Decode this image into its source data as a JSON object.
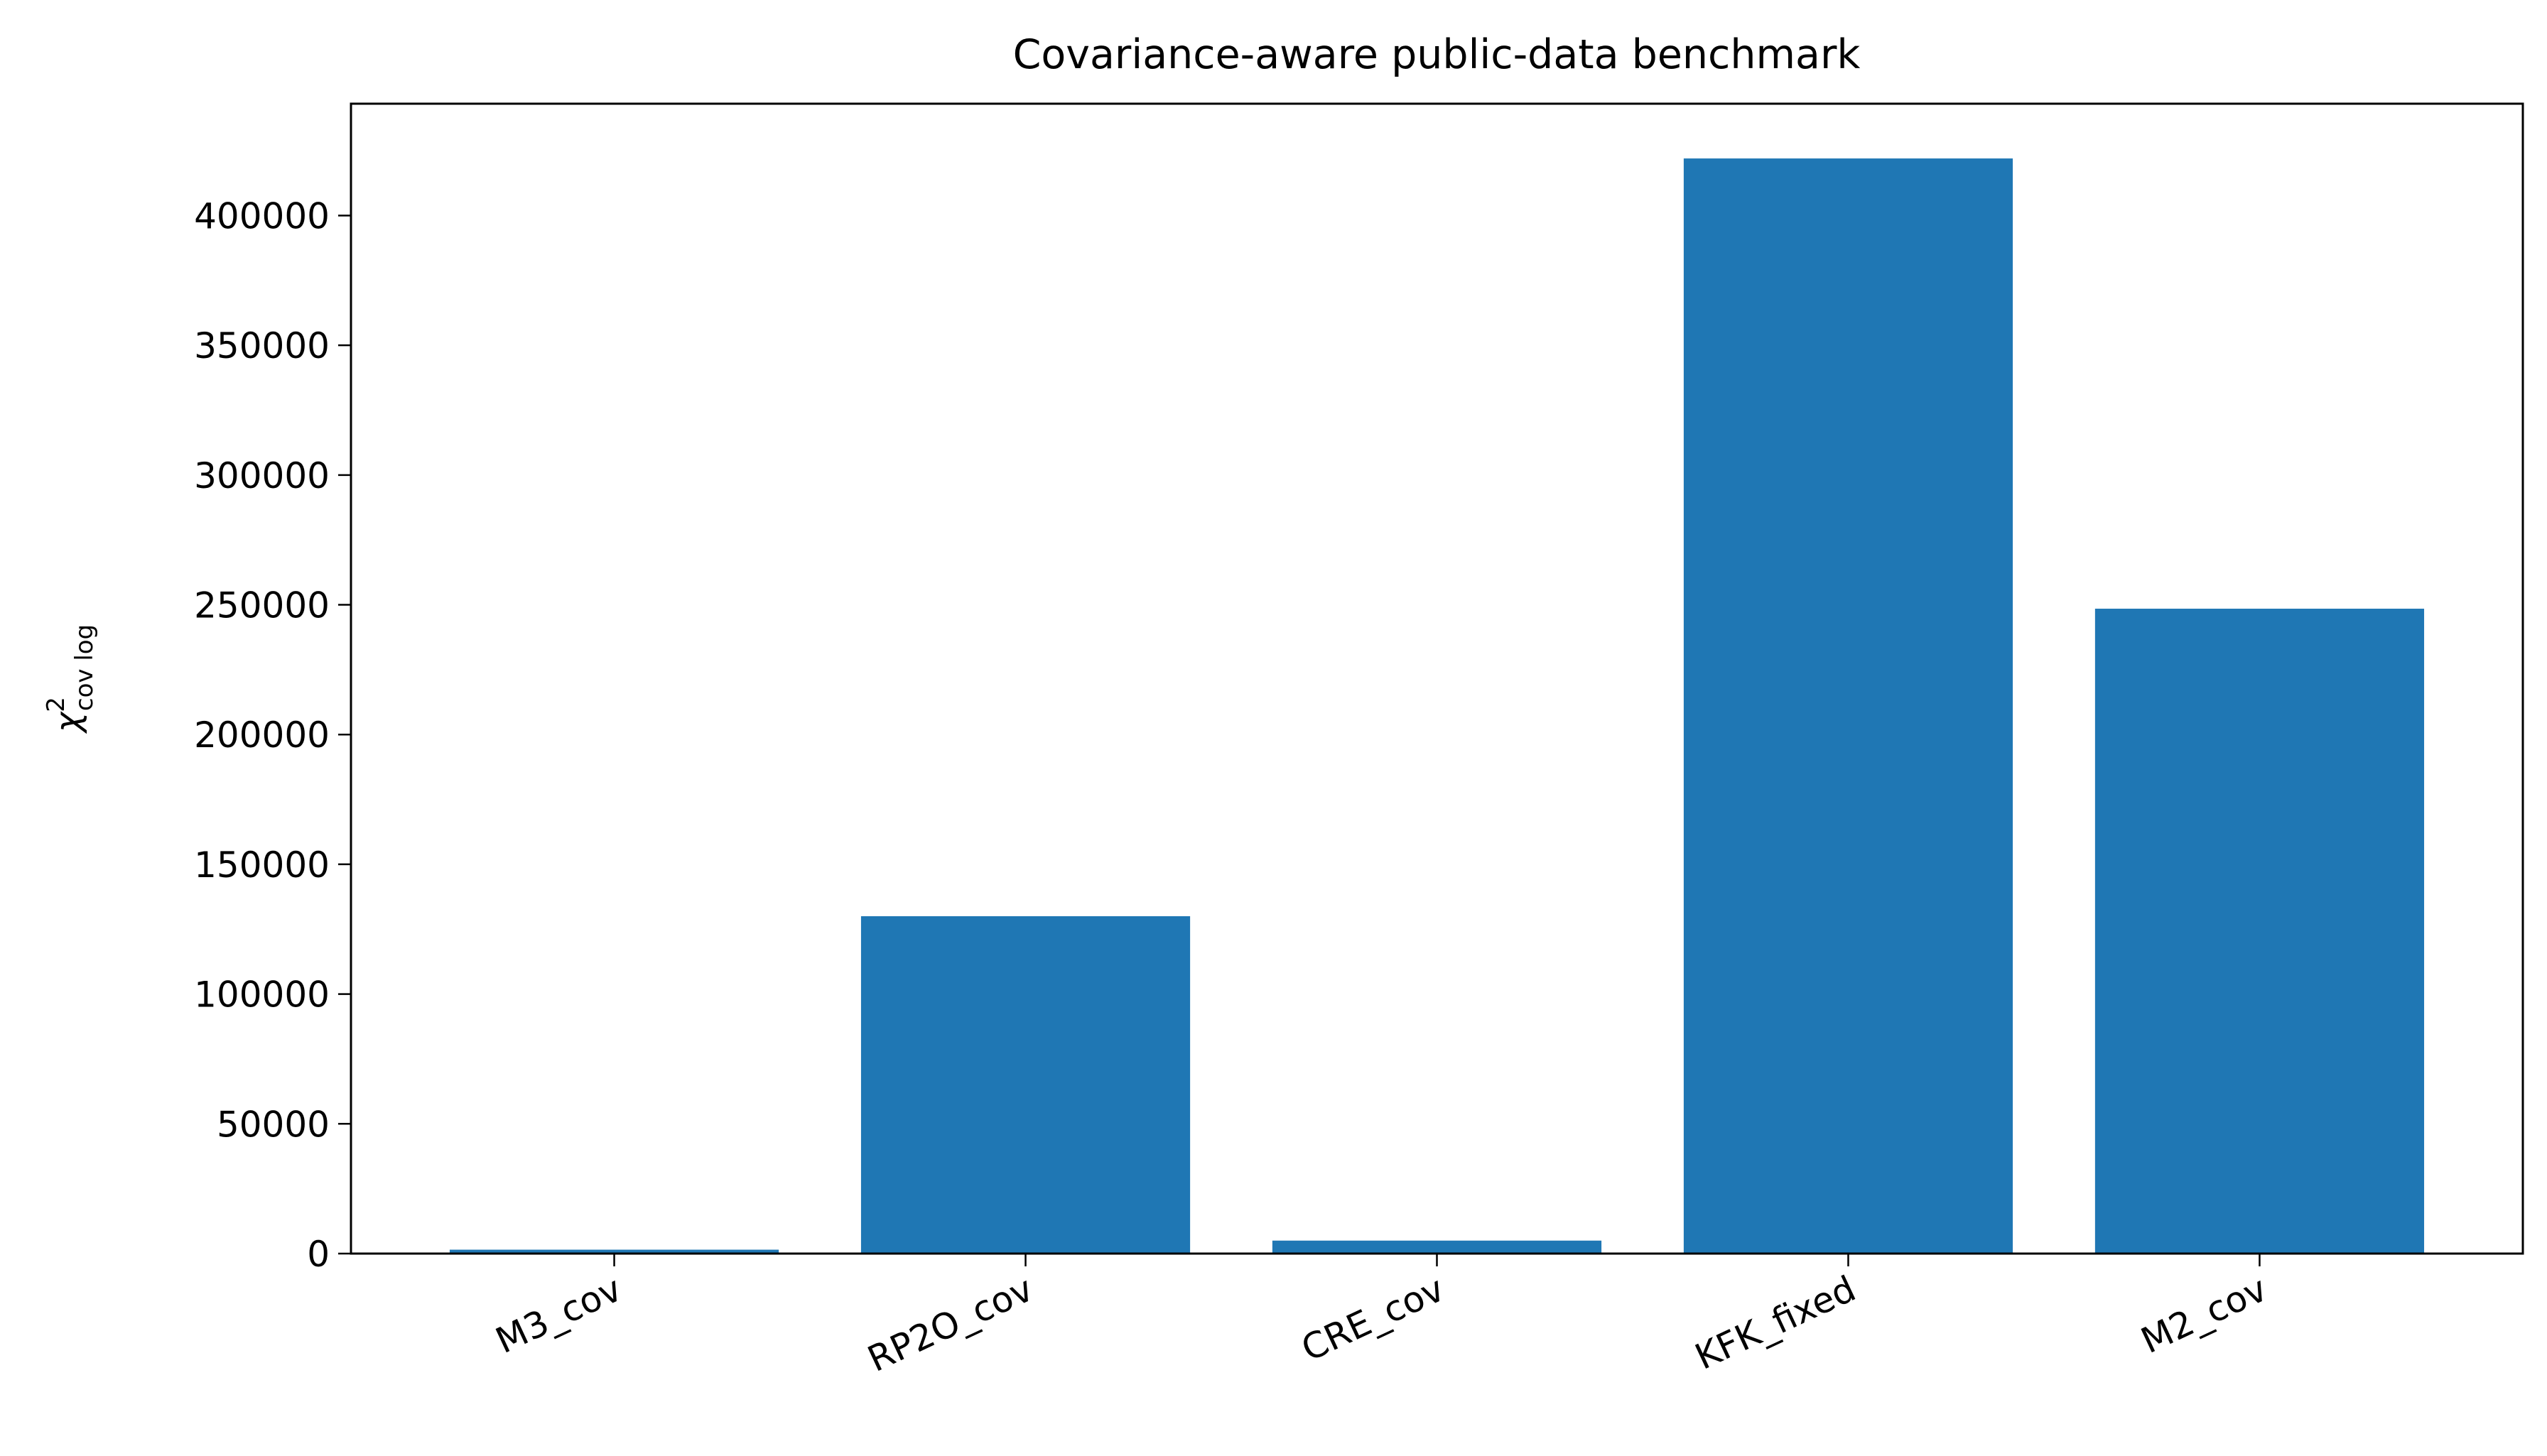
{
  "chart_data": {
    "type": "bar",
    "title": "Covariance-aware public-data benchmark",
    "y_label": {
      "base": "χ",
      "sup": "2",
      "sub": "cov log"
    },
    "categories": [
      "M3_cov",
      "RP2O_cov",
      "CRE_cov",
      "KFK_fixed",
      "M2_cov"
    ],
    "values": [
      1500,
      130000,
      5000,
      422000,
      248500
    ],
    "color": "#1f77b4",
    "ylim": [
      0,
      443100
    ],
    "yticks": [
      0,
      50000,
      100000,
      150000,
      200000,
      250000,
      300000,
      350000,
      400000
    ],
    "grid": false
  }
}
